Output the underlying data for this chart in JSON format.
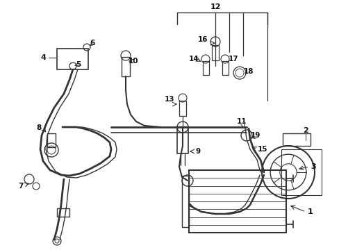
{
  "bg_color": "#ffffff",
  "line_color": "#333333",
  "label_color": "#111111",
  "fig_width": 4.89,
  "fig_height": 3.6,
  "dpi": 100
}
